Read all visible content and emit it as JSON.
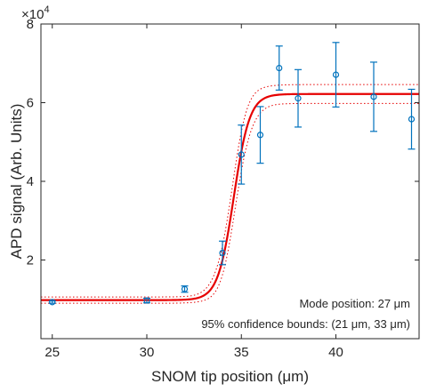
{
  "chart_data": {
    "type": "scatter",
    "xlabel": "SNOM tip position (μm)",
    "ylabel": "APD signal (Arb. Units)",
    "y_exponent_label": "×10",
    "y_exponent_power": "4",
    "xlim": [
      24.4,
      44.4
    ],
    "ylim": [
      0,
      80000
    ],
    "x_ticks": [
      25,
      30,
      35,
      40
    ],
    "x_tick_labels": [
      "25",
      "30",
      "35",
      "40"
    ],
    "y_ticks": [
      20000,
      40000,
      60000,
      80000
    ],
    "y_tick_labels": [
      "2",
      "4",
      "6",
      "8"
    ],
    "grid": false,
    "box": true,
    "colors": {
      "data": "#0072BD",
      "fit": "#e60000",
      "bounds": "#e60000",
      "axis": "#262626"
    },
    "data_points": {
      "x": [
        25,
        30,
        32,
        34,
        35,
        36,
        37,
        38,
        40,
        42,
        44
      ],
      "y": [
        9300,
        9700,
        12600,
        21800,
        46800,
        51800,
        68800,
        61100,
        67100,
        61500,
        55800
      ],
      "err": [
        300,
        600,
        800,
        3000,
        7500,
        7200,
        5600,
        7300,
        8200,
        8800,
        7600
      ]
    },
    "fit": {
      "model": "logistic",
      "baseline": 9800,
      "plateau": 62200,
      "center": 34.6,
      "width": 0.42,
      "band_low": 800,
      "band_high": 2400
    },
    "annotations": [
      "Mode position: 27 μm",
      "95% confidence bounds: (21 μm, 33 μm)"
    ]
  }
}
